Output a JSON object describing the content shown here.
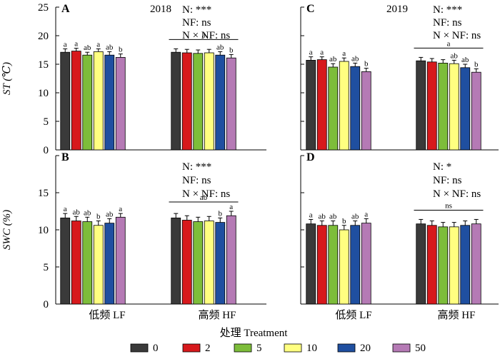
{
  "chart_data": {
    "type": "bar",
    "x_title": "处理 Treatment",
    "categories": [
      "低频 LF",
      "高频 HF"
    ],
    "legend": {
      "labels": [
        "0",
        "2",
        "5",
        "10",
        "20",
        "50"
      ],
      "colors": [
        "#3a3a3a",
        "#d7191c",
        "#7dbd3a",
        "#ffff80",
        "#1f4fa0",
        "#b57ab5"
      ],
      "placement": "bottom"
    },
    "panels": [
      {
        "letter": "A",
        "year": "2018",
        "ylabel": "ST (℃)",
        "ylim": [
          0,
          25
        ],
        "ticks": [
          "0",
          "5",
          "10",
          "15",
          "20",
          "25"
        ],
        "stats": [
          "N: ***",
          "NF: ns",
          "N × NF: ns"
        ],
        "group_label": {
          "text": "a",
          "category": 1
        },
        "series": [
          {
            "name": "0",
            "values": [
              17.1,
              17.1
            ],
            "errors": [
              0.6,
              0.6
            ]
          },
          {
            "name": "2",
            "values": [
              17.3,
              17.0
            ],
            "errors": [
              0.5,
              0.6
            ]
          },
          {
            "name": "5",
            "values": [
              16.6,
              16.9
            ],
            "errors": [
              0.5,
              0.6
            ]
          },
          {
            "name": "10",
            "values": [
              17.2,
              17.0
            ],
            "errors": [
              0.5,
              0.6
            ]
          },
          {
            "name": "20",
            "values": [
              16.6,
              16.6
            ],
            "errors": [
              0.6,
              0.6
            ]
          },
          {
            "name": "50",
            "values": [
              16.2,
              16.1
            ],
            "errors": [
              0.6,
              0.6
            ]
          }
        ],
        "bar_labels": [
          [
            "a",
            "a",
            "ab",
            "a",
            "ab",
            "b"
          ],
          [
            "",
            "",
            "",
            "",
            "ab",
            "b"
          ]
        ]
      },
      {
        "letter": "C",
        "year": "2019",
        "ylabel": "",
        "ylim": [
          0,
          25
        ],
        "ticks": [],
        "stats": [
          "N: ***",
          "NF: ns",
          "N × NF: ns"
        ],
        "group_label": {
          "text": "a",
          "category": 1
        },
        "series": [
          {
            "name": "0",
            "values": [
              15.7,
              15.6
            ],
            "errors": [
              0.6,
              0.6
            ]
          },
          {
            "name": "2",
            "values": [
              15.8,
              15.4
            ],
            "errors": [
              0.5,
              0.6
            ]
          },
          {
            "name": "5",
            "values": [
              14.5,
              15.2
            ],
            "errors": [
              0.6,
              0.6
            ]
          },
          {
            "name": "10",
            "values": [
              15.5,
              15.1
            ],
            "errors": [
              0.6,
              0.6
            ]
          },
          {
            "name": "20",
            "values": [
              14.6,
              14.4
            ],
            "errors": [
              0.6,
              0.6
            ]
          },
          {
            "name": "50",
            "values": [
              13.7,
              13.6
            ],
            "errors": [
              0.6,
              0.6
            ]
          }
        ],
        "bar_labels": [
          [
            "a",
            "a",
            "ab",
            "a",
            "ab",
            "b"
          ],
          [
            "",
            "",
            "",
            "ab",
            "ab",
            "b"
          ]
        ]
      },
      {
        "letter": "B",
        "year": "",
        "ylabel": "SWC (%)",
        "ylim": [
          0,
          20
        ],
        "ticks": [
          "0",
          "5",
          "10",
          "15"
        ],
        "stats": [
          "N: ***",
          "NF: ns",
          "N × NF: ns"
        ],
        "group_label": {
          "text": "ab",
          "category": 1
        },
        "series": [
          {
            "name": "0",
            "values": [
              11.6,
              11.6
            ],
            "errors": [
              0.6,
              0.6
            ]
          },
          {
            "name": "2",
            "values": [
              11.2,
              11.3
            ],
            "errors": [
              0.6,
              0.6
            ]
          },
          {
            "name": "5",
            "values": [
              11.1,
              11.1
            ],
            "errors": [
              0.6,
              0.6
            ]
          },
          {
            "name": "10",
            "values": [
              10.6,
              11.2
            ],
            "errors": [
              0.6,
              0.6
            ]
          },
          {
            "name": "20",
            "values": [
              10.9,
              11.0
            ],
            "errors": [
              0.6,
              0.6
            ]
          },
          {
            "name": "50",
            "values": [
              11.7,
              11.9
            ],
            "errors": [
              0.5,
              0.6
            ]
          }
        ],
        "bar_labels": [
          [
            "a",
            "ab",
            "ab",
            "b",
            "ab",
            "a"
          ],
          [
            "",
            "",
            "",
            "",
            "b",
            "a"
          ]
        ]
      },
      {
        "letter": "D",
        "year": "",
        "ylabel": "",
        "ylim": [
          0,
          20
        ],
        "ticks": [],
        "stats": [
          "N: *",
          "NF: ns",
          "N × NF: ns"
        ],
        "group_label": {
          "text": "ns",
          "category": 1
        },
        "series": [
          {
            "name": "0",
            "values": [
              10.8,
              10.8
            ],
            "errors": [
              0.6,
              0.6
            ]
          },
          {
            "name": "2",
            "values": [
              10.6,
              10.6
            ],
            "errors": [
              0.6,
              0.6
            ]
          },
          {
            "name": "5",
            "values": [
              10.6,
              10.4
            ],
            "errors": [
              0.6,
              0.6
            ]
          },
          {
            "name": "10",
            "values": [
              10.0,
              10.4
            ],
            "errors": [
              0.6,
              0.6
            ]
          },
          {
            "name": "20",
            "values": [
              10.6,
              10.6
            ],
            "errors": [
              0.6,
              0.6
            ]
          },
          {
            "name": "50",
            "values": [
              10.9,
              10.8
            ],
            "errors": [
              0.6,
              0.6
            ]
          }
        ],
        "bar_labels": [
          [
            "a",
            "ab",
            "ab",
            "b",
            "ab",
            "a"
          ],
          [
            "",
            "",
            "",
            "",
            "",
            ""
          ]
        ]
      }
    ]
  }
}
